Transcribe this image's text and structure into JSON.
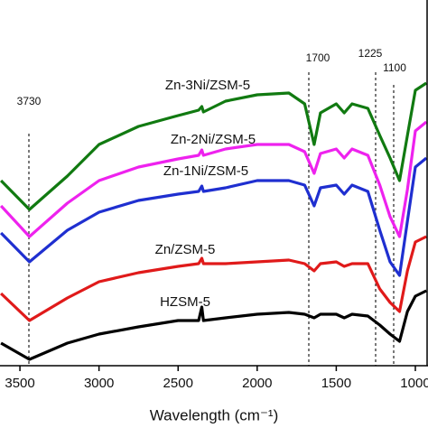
{
  "chart_data": {
    "type": "line",
    "x_label": "Wavelength (cm⁻¹)",
    "x": [
      3620,
      3440,
      3200,
      3000,
      2750,
      2500,
      2370,
      2350,
      2340,
      2200,
      2000,
      1800,
      1700,
      1640,
      1600,
      1500,
      1450,
      1400,
      1300,
      1225,
      1160,
      1100,
      1050,
      1000,
      930
    ],
    "xlim": [
      3626,
      920
    ],
    "xticks": [
      3500,
      3000,
      2500,
      2000,
      1500,
      1000
    ],
    "ylim": [
      0,
      405
    ],
    "annotations": [
      "3730",
      "1700",
      "1225",
      "1100"
    ],
    "series": [
      {
        "name": "Zn-3Ni/ZSM-5",
        "color": "#117a11",
        "values": [
          205,
          173,
          210,
          245,
          265,
          277,
          283,
          287,
          281,
          293,
          300,
          302,
          290,
          245,
          280,
          290,
          280,
          290,
          285,
          255,
          230,
          205,
          255,
          305,
          313
        ]
      },
      {
        "name": "Zn-2Ni/ZSM-5",
        "color": "#ee22ee",
        "values": [
          177,
          143,
          180,
          205,
          220,
          229,
          233,
          239,
          233,
          240,
          245,
          245,
          237,
          213,
          235,
          240,
          230,
          240,
          233,
          200,
          165,
          143,
          195,
          260,
          270
        ]
      },
      {
        "name": "Zn-1Ni/ZSM-5",
        "color": "#1f2fd0",
        "values": [
          147,
          115,
          150,
          170,
          183,
          190,
          193,
          199,
          193,
          197,
          205,
          205,
          200,
          177,
          197,
          200,
          190,
          200,
          193,
          150,
          115,
          100,
          160,
          220,
          230
        ]
      },
      {
        "name": "Zn/ZSM-5",
        "color": "#e01a1a",
        "values": [
          80,
          50,
          75,
          93,
          103,
          110,
          113,
          119,
          113,
          113,
          115,
          117,
          113,
          105,
          113,
          115,
          110,
          113,
          113,
          85,
          70,
          60,
          105,
          137,
          143
        ]
      },
      {
        "name": "HZSM-5",
        "color": "#000000",
        "values": [
          25,
          7,
          25,
          35,
          43,
          50,
          50,
          65,
          50,
          53,
          57,
          59,
          57,
          53,
          57,
          57,
          53,
          57,
          55,
          45,
          35,
          27,
          60,
          77,
          83
        ]
      }
    ]
  }
}
